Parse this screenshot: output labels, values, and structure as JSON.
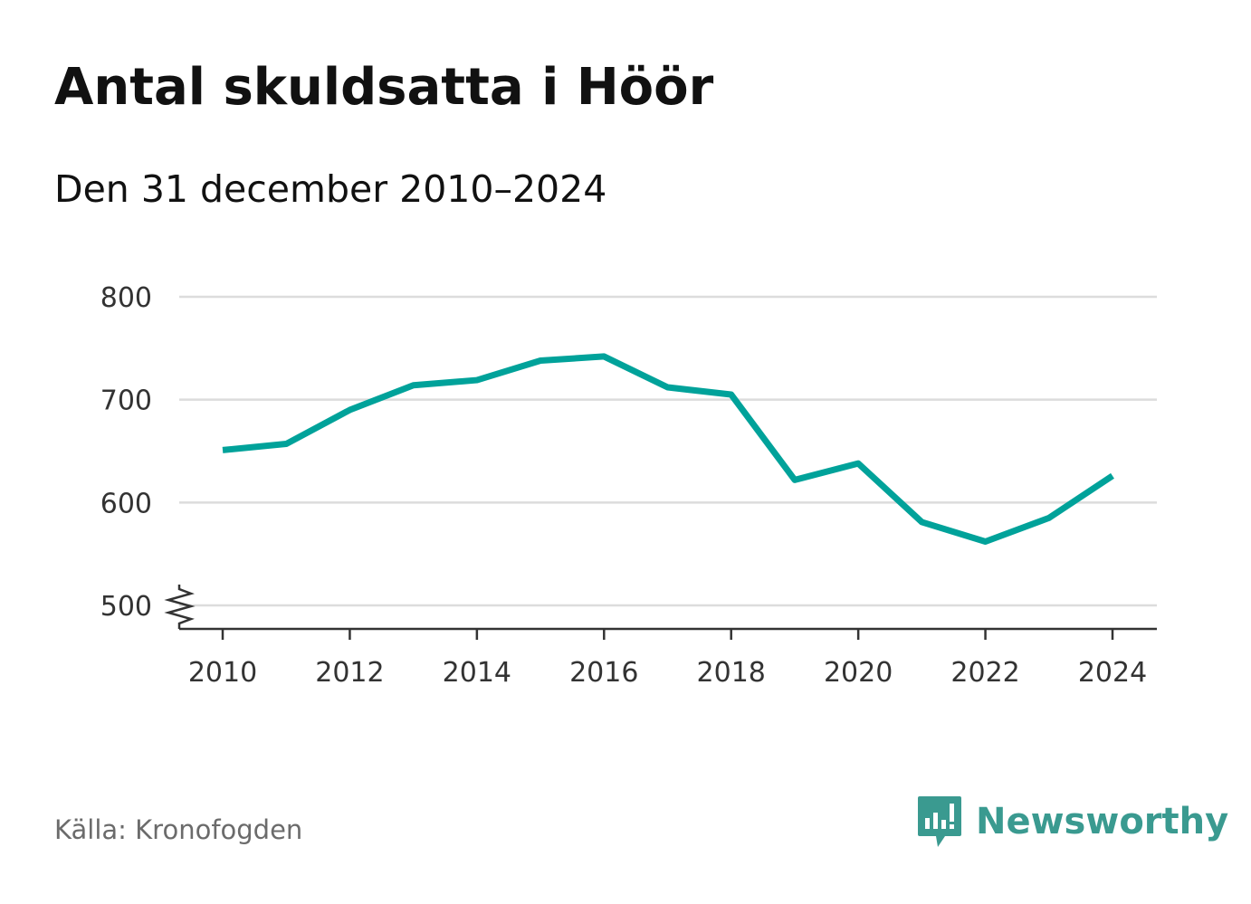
{
  "title": "Antal skuldsatta i Höör",
  "subtitle": "Den 31 december 2010–2024",
  "source": "Källa: Kronofogden",
  "brand": {
    "name": "Newsworthy",
    "icon": "bar-chart-speech-icon",
    "color": "#3a9a90"
  },
  "chart_data": {
    "type": "line",
    "x": [
      2010,
      2011,
      2012,
      2013,
      2014,
      2015,
      2016,
      2017,
      2018,
      2019,
      2020,
      2021,
      2022,
      2023,
      2024
    ],
    "series": [
      {
        "values": [
          651,
          657,
          690,
          714,
          719,
          738,
          742,
          712,
          705,
          622,
          638,
          581,
          562,
          585,
          626
        ]
      }
    ],
    "xticks": [
      "2010",
      "2012",
      "2014",
      "2016",
      "2018",
      "2020",
      "2022",
      "2024"
    ],
    "yticks": [
      "500",
      "600",
      "700",
      "800"
    ],
    "ylim": [
      500,
      800
    ],
    "xlim": [
      2010,
      2024
    ],
    "grid": true,
    "axis_break": true,
    "line_color": "#00a29a"
  }
}
